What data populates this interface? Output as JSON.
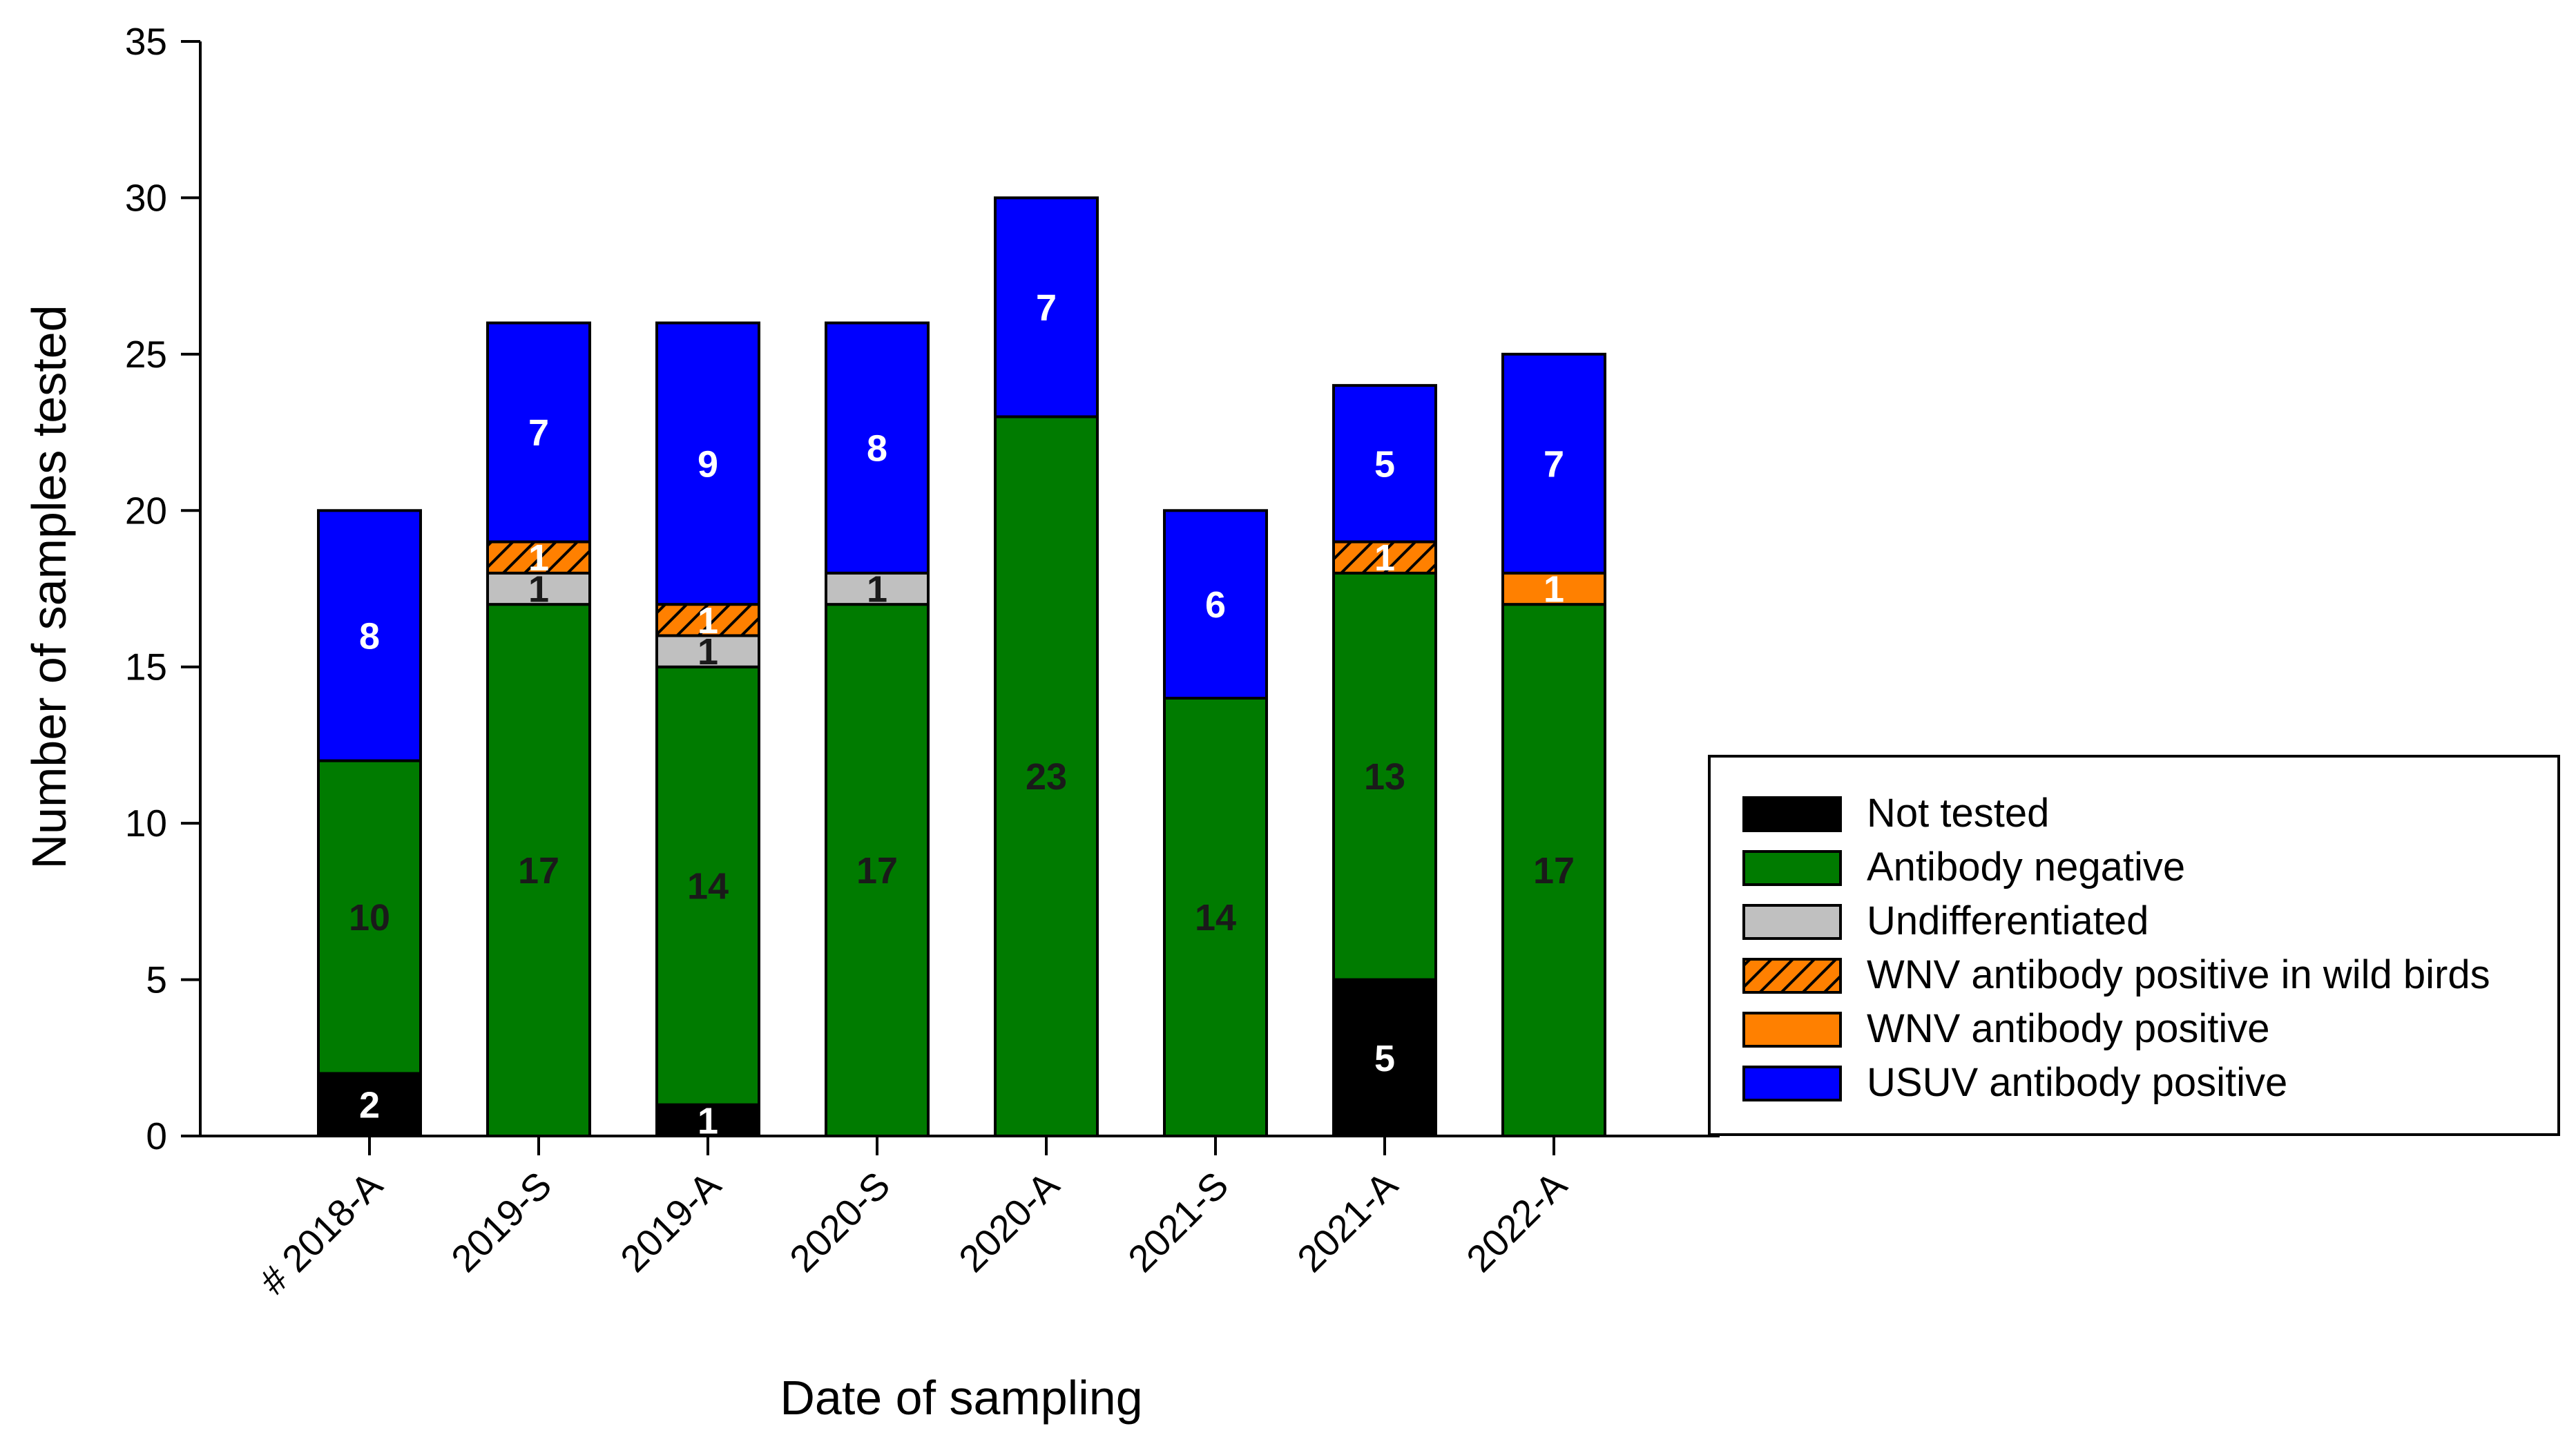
{
  "chart_data": {
    "type": "bar",
    "stacked": true,
    "title": "",
    "xlabel": "Date of sampling",
    "ylabel": "Number of samples tested",
    "ylim": [
      0,
      35
    ],
    "yticks": [
      0,
      5,
      10,
      15,
      20,
      25,
      30,
      35
    ],
    "categories": [
      "# 2018-A",
      "2019-S",
      "2019-A",
      "2020-S",
      "2020-A",
      "2021-S",
      "2021-A",
      "2022-A"
    ],
    "series": [
      {
        "name": "Not tested",
        "color": "#000000",
        "pattern": "solid",
        "label_color": "#ffffff",
        "values": [
          2,
          0,
          1,
          0,
          0,
          0,
          5,
          0
        ]
      },
      {
        "name": "Antibody negative",
        "color": "#007b00",
        "pattern": "solid",
        "label_color": "#1a1a1a",
        "values": [
          10,
          17,
          14,
          17,
          23,
          14,
          13,
          17
        ]
      },
      {
        "name": "Undifferentiated",
        "color": "#c0c0c0",
        "pattern": "solid",
        "label_color": "#1a1a1a",
        "values": [
          0,
          1,
          1,
          1,
          0,
          0,
          0,
          0
        ]
      },
      {
        "name": "WNV antibody positive in wild birds",
        "color": "#ff8000",
        "pattern": "hatch",
        "label_color": "#ffffff",
        "values": [
          0,
          1,
          1,
          0,
          0,
          0,
          1,
          0
        ]
      },
      {
        "name": "WNV antibody positive",
        "color": "#ff8000",
        "pattern": "solid",
        "label_color": "#ffffff",
        "values": [
          0,
          0,
          0,
          0,
          0,
          0,
          0,
          1
        ]
      },
      {
        "name": "USUV antibody positive",
        "color": "#0000ff",
        "pattern": "solid",
        "label_color": "#ffffff",
        "values": [
          8,
          7,
          9,
          8,
          7,
          6,
          5,
          7
        ]
      }
    ],
    "legend_position": "right"
  }
}
